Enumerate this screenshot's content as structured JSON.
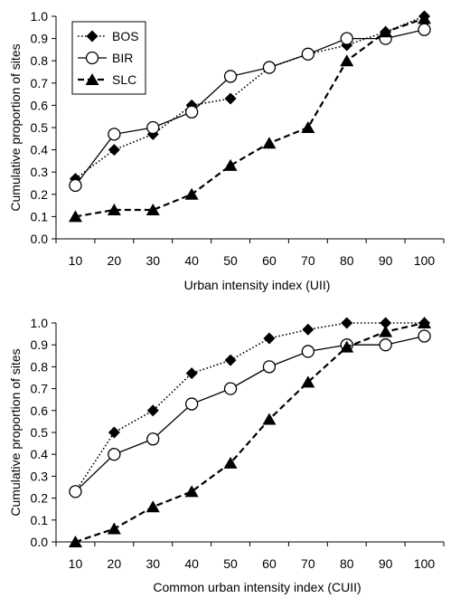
{
  "chart_data": [
    {
      "type": "line",
      "xlabel": "Urban intensity index (UII)",
      "ylabel": "Cumulative proportion of sites",
      "x": [
        10,
        20,
        30,
        40,
        50,
        60,
        70,
        80,
        90,
        100
      ],
      "ylim": [
        0,
        1
      ],
      "yticks": [
        "0.0",
        "0.1",
        "0.2",
        "0.3",
        "0.4",
        "0.5",
        "0.6",
        "0.7",
        "0.8",
        "0.9",
        "1.0"
      ],
      "grid": false,
      "legend": "top-left",
      "series": [
        {
          "name": "BOS",
          "marker": "diamond",
          "line": "dotted",
          "values": [
            0.27,
            0.4,
            0.47,
            0.6,
            0.63,
            0.77,
            0.83,
            0.87,
            0.93,
            1.0
          ]
        },
        {
          "name": "BIR",
          "marker": "circle-open",
          "line": "solid",
          "values": [
            0.24,
            0.47,
            0.5,
            0.57,
            0.73,
            0.77,
            0.83,
            0.9,
            0.9,
            0.94
          ]
        },
        {
          "name": "SLC",
          "marker": "triangle",
          "line": "dashed",
          "values": [
            0.1,
            0.13,
            0.13,
            0.2,
            0.33,
            0.43,
            0.5,
            0.8,
            0.93,
            0.99
          ]
        }
      ]
    },
    {
      "type": "line",
      "xlabel": "Common urban intensity index (CUII)",
      "ylabel": "Cumulative proportion of sites",
      "x": [
        10,
        20,
        30,
        40,
        50,
        60,
        70,
        80,
        90,
        100
      ],
      "ylim": [
        0,
        1
      ],
      "yticks": [
        "0.0",
        "0.1",
        "0.2",
        "0.3",
        "0.4",
        "0.5",
        "0.6",
        "0.7",
        "0.8",
        "0.9",
        "1.0"
      ],
      "grid": false,
      "series": [
        {
          "name": "BOS",
          "marker": "diamond",
          "line": "dotted",
          "values": [
            0.23,
            0.5,
            0.6,
            0.77,
            0.83,
            0.93,
            0.97,
            1.0,
            1.0,
            1.0
          ]
        },
        {
          "name": "BIR",
          "marker": "circle-open",
          "line": "solid",
          "values": [
            0.23,
            0.4,
            0.47,
            0.63,
            0.7,
            0.8,
            0.87,
            0.9,
            0.9,
            0.94
          ]
        },
        {
          "name": "SLC",
          "marker": "triangle",
          "line": "dashed",
          "values": [
            0.0,
            0.06,
            0.16,
            0.23,
            0.36,
            0.56,
            0.73,
            0.89,
            0.96,
            1.0
          ]
        }
      ]
    }
  ]
}
